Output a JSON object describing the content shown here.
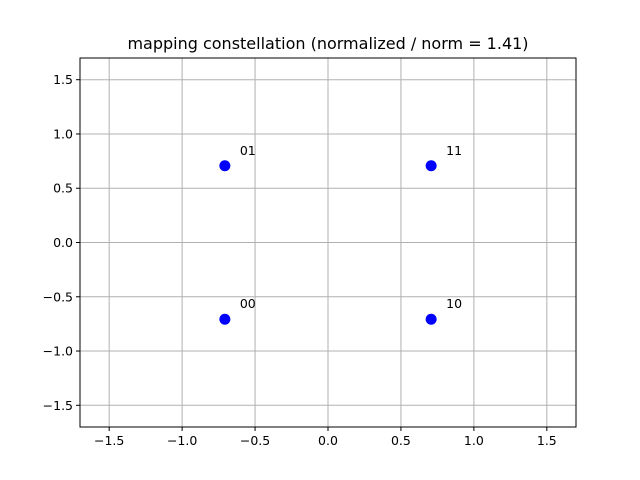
{
  "chart_data": {
    "type": "scatter",
    "title": "mapping constellation (normalized / norm = 1.41)",
    "xlabel": "",
    "ylabel": "",
    "xlim": [
      -1.7,
      1.7
    ],
    "ylim": [
      -1.7,
      1.7
    ],
    "grid": true,
    "x_ticks": [
      -1.5,
      -1.0,
      -0.5,
      0.0,
      0.5,
      1.0,
      1.5
    ],
    "x_tick_labels": [
      "−1.5",
      "−1.0",
      "−0.5",
      "0.0",
      "0.5",
      "1.0",
      "1.5"
    ],
    "y_ticks": [
      -1.5,
      -1.0,
      -0.5,
      0.0,
      0.5,
      1.0,
      1.5
    ],
    "y_tick_labels": [
      "−1.5",
      "−1.0",
      "−0.5",
      "0.0",
      "0.5",
      "1.0",
      "1.5"
    ],
    "marker_color": "#0000ff",
    "points": [
      {
        "x": -0.707,
        "y": -0.707,
        "label": "00"
      },
      {
        "x": -0.707,
        "y": 0.707,
        "label": "01"
      },
      {
        "x": 0.707,
        "y": -0.707,
        "label": "10"
      },
      {
        "x": 0.707,
        "y": 0.707,
        "label": "11"
      }
    ]
  }
}
